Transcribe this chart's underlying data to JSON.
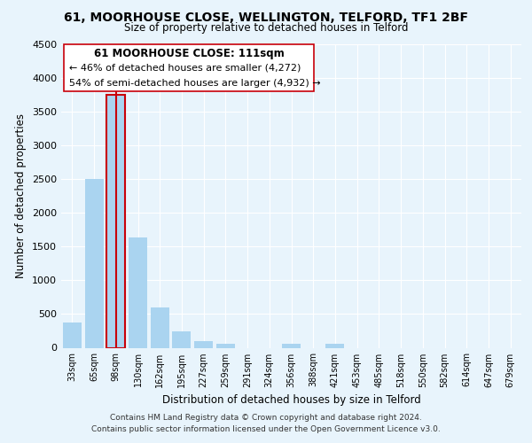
{
  "title": "61, MOORHOUSE CLOSE, WELLINGTON, TELFORD, TF1 2BF",
  "subtitle": "Size of property relative to detached houses in Telford",
  "xlabel": "Distribution of detached houses by size in Telford",
  "ylabel": "Number of detached properties",
  "bar_labels": [
    "33sqm",
    "65sqm",
    "98sqm",
    "130sqm",
    "162sqm",
    "195sqm",
    "227sqm",
    "259sqm",
    "291sqm",
    "324sqm",
    "356sqm",
    "388sqm",
    "421sqm",
    "453sqm",
    "485sqm",
    "518sqm",
    "550sqm",
    "582sqm",
    "614sqm",
    "647sqm",
    "679sqm"
  ],
  "bar_values": [
    380,
    2500,
    3750,
    1640,
    600,
    240,
    100,
    55,
    0,
    0,
    55,
    0,
    55,
    0,
    0,
    0,
    0,
    0,
    0,
    0,
    0
  ],
  "bar_color": "#aad4f0",
  "highlight_bar_index": 2,
  "highlight_bar_color": "#c8000a",
  "annotation_title": "61 MOORHOUSE CLOSE: 111sqm",
  "annotation_line1": "← 46% of detached houses are smaller (4,272)",
  "annotation_line2": "54% of semi-detached houses are larger (4,932) →",
  "ylim": [
    0,
    4500
  ],
  "yticks": [
    0,
    500,
    1000,
    1500,
    2000,
    2500,
    3000,
    3500,
    4000,
    4500
  ],
  "footer_line1": "Contains HM Land Registry data © Crown copyright and database right 2024.",
  "footer_line2": "Contains public sector information licensed under the Open Government Licence v3.0.",
  "bg_color": "#e8f4fc",
  "grid_color": "#ffffff"
}
